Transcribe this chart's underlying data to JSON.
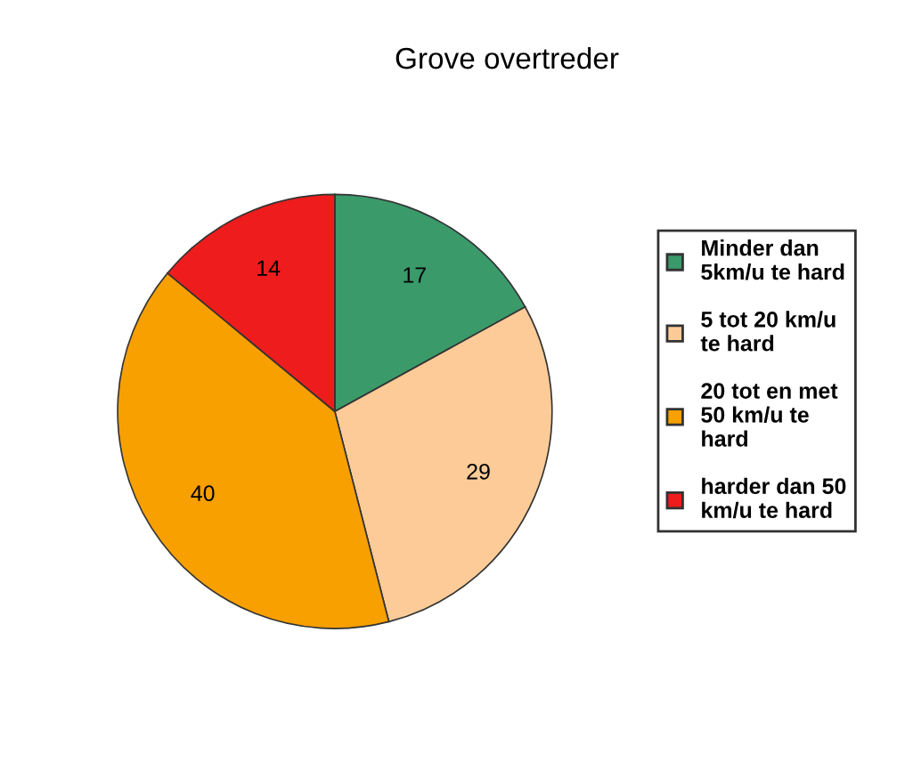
{
  "chart_data": {
    "type": "pie",
    "title": "Grove overtreder",
    "categories": [
      "Minder dan 5km/u te hard",
      "5 tot 20 km/u te hard",
      "20 tot en met 50 km/u te hard",
      "harder dan 50 km/u te hard"
    ],
    "values": [
      17,
      29,
      40,
      14
    ],
    "colors": [
      "#3a9a6a",
      "#fccb98",
      "#f7a000",
      "#ee1c1c"
    ],
    "data_labels": true,
    "legend": "right"
  }
}
